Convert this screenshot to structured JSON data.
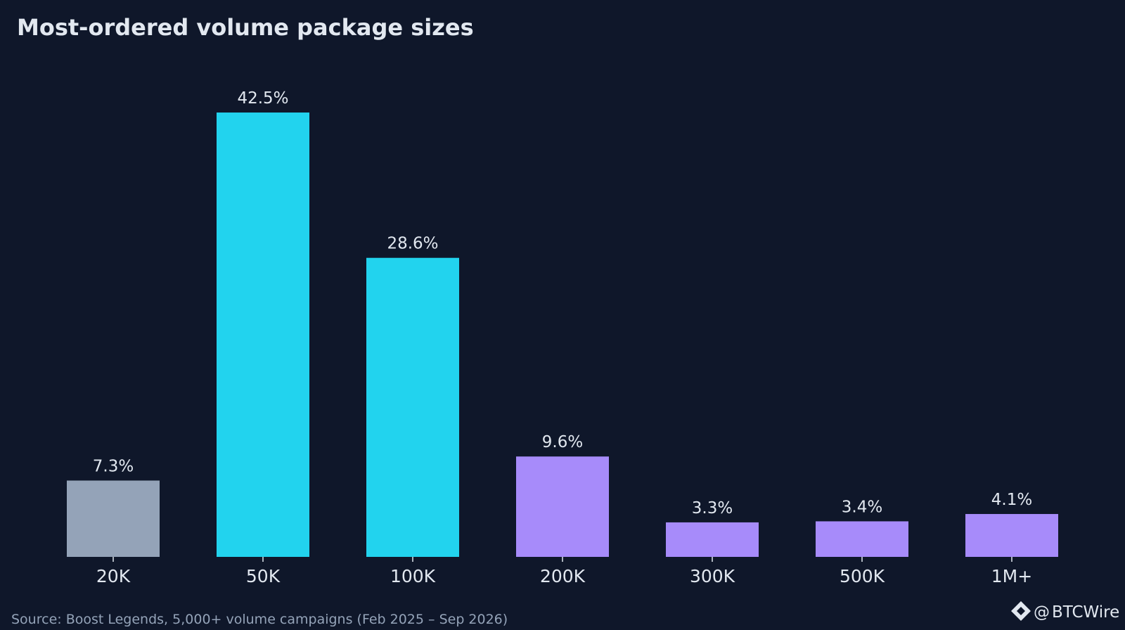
{
  "chart_data": {
    "type": "bar",
    "title": "Most-ordered volume package sizes",
    "categories": [
      "20K",
      "50K",
      "100K",
      "200K",
      "300K",
      "500K",
      "1M+"
    ],
    "values": [
      7.3,
      42.5,
      28.6,
      9.6,
      3.3,
      3.4,
      4.1
    ],
    "value_labels": [
      "7.3%",
      "42.5%",
      "28.6%",
      "9.6%",
      "3.3%",
      "3.4%",
      "4.1%"
    ],
    "colors": [
      "#94a3b8",
      "#22d3ee",
      "#22d3ee",
      "#a78bfa",
      "#a78bfa",
      "#a78bfa",
      "#a78bfa"
    ],
    "xlabel": "",
    "ylabel": "",
    "ylim": [
      0,
      45
    ],
    "grid": false,
    "legend": "none"
  },
  "footer": {
    "source": "Source: Boost Legends, 5,000+ volume campaigns (Feb 2025 – Sep 2026)",
    "brand_prefix": "@",
    "brand_name": "BTCWire",
    "brand_icon": "diamond-logo-icon"
  },
  "colors": {
    "background": "#0f172a",
    "text": "#e2e8f0",
    "muted": "#94a3b8"
  }
}
